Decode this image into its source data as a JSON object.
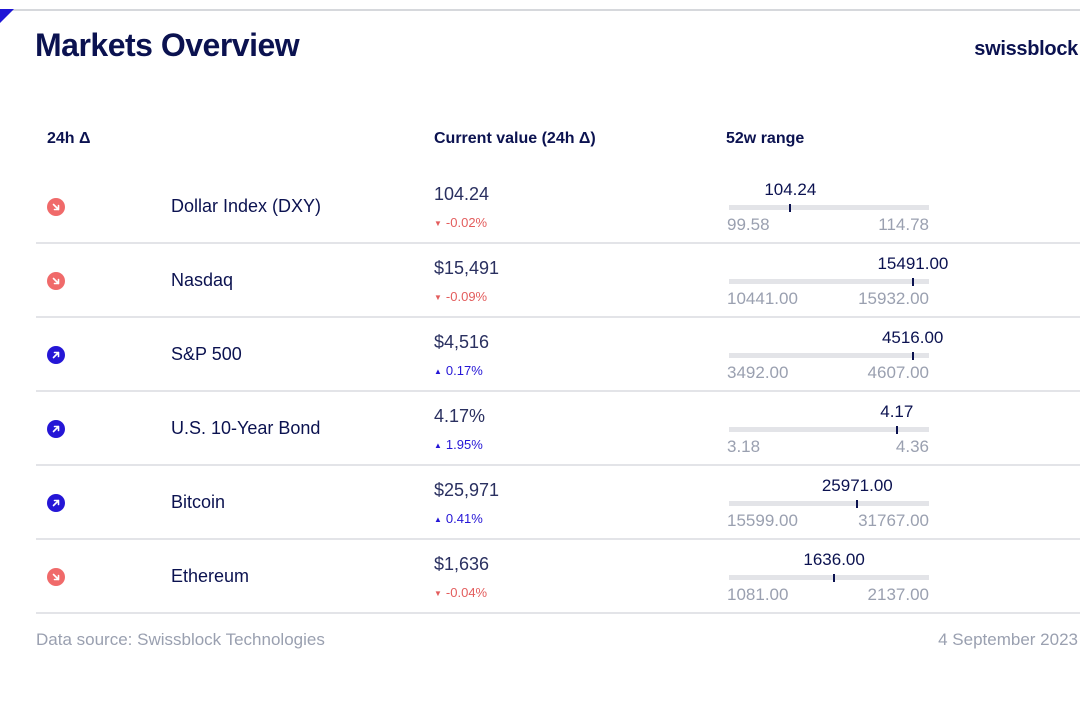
{
  "header": {
    "title": "Markets Overview",
    "brand": "swissblock"
  },
  "columns": {
    "change": "24h Δ",
    "current": "Current value (24h Δ)",
    "range": "52w range"
  },
  "colors": {
    "navy": "#0b1250",
    "up": "#2516d6",
    "down": "#f06a6a",
    "track": "#e3e4e8",
    "muted": "#9aa0b0"
  },
  "chart_data": {
    "type": "table",
    "rows": [
      {
        "name": "Dollar Index (DXY)",
        "direction": "down",
        "current_display": "104.24",
        "change_display": "-0.02%",
        "change_pct": -0.02,
        "range_current_label": "104.24",
        "range_current": 104.24,
        "range_min_label": "99.58",
        "range_min": 99.58,
        "range_max_label": "114.78",
        "range_max": 114.78
      },
      {
        "name": "Nasdaq",
        "direction": "down",
        "current_display": "$15,491",
        "change_display": "-0.09%",
        "change_pct": -0.09,
        "range_current_label": "15491.00",
        "range_current": 15491.0,
        "range_min_label": "10441.00",
        "range_min": 10441.0,
        "range_max_label": "15932.00",
        "range_max": 15932.0
      },
      {
        "name": "S&P 500",
        "direction": "up",
        "current_display": "$4,516",
        "change_display": "0.17%",
        "change_pct": 0.17,
        "range_current_label": "4516.00",
        "range_current": 4516.0,
        "range_min_label": "3492.00",
        "range_min": 3492.0,
        "range_max_label": "4607.00",
        "range_max": 4607.0
      },
      {
        "name": "U.S. 10-Year Bond",
        "direction": "up",
        "current_display": "4.17%",
        "change_display": "1.95%",
        "change_pct": 1.95,
        "range_current_label": "4.17",
        "range_current": 4.17,
        "range_min_label": "3.18",
        "range_min": 3.18,
        "range_max_label": "4.36",
        "range_max": 4.36
      },
      {
        "name": "Bitcoin",
        "direction": "up",
        "current_display": "$25,971",
        "change_display": "0.41%",
        "change_pct": 0.41,
        "range_current_label": "25971.00",
        "range_current": 25971.0,
        "range_min_label": "15599.00",
        "range_min": 15599.0,
        "range_max_label": "31767.00",
        "range_max": 31767.0
      },
      {
        "name": "Ethereum",
        "direction": "down",
        "current_display": "$1,636",
        "change_display": "-0.04%",
        "change_pct": -0.04,
        "range_current_label": "1636.00",
        "range_current": 1636.0,
        "range_min_label": "1081.00",
        "range_min": 1081.0,
        "range_max_label": "2137.00",
        "range_max": 2137.0
      }
    ]
  },
  "footer": {
    "source": "Data source: Swissblock Technologies",
    "date": "4 September 2023"
  }
}
